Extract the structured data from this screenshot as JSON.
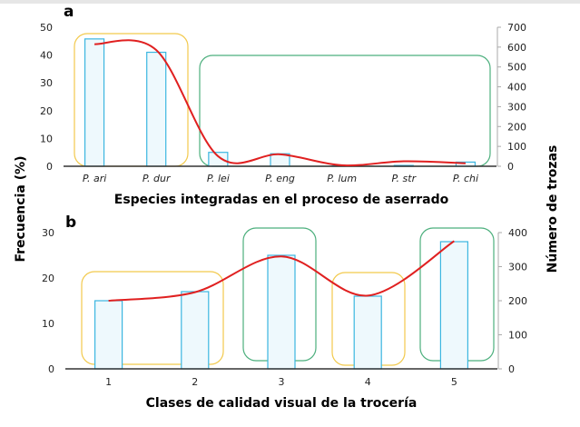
{
  "y_label_left": "Frecuencia (%)",
  "y_label_right": "Número de trozas",
  "colors": {
    "bar_stroke": "#3bb6e0",
    "bar_fill": "#eef9fd",
    "line": "#e02020",
    "box_yellow": "#f2c94c",
    "box_green": "#4caf7d",
    "axis": "#333333"
  },
  "chart_data": [
    {
      "panel": "a",
      "type": "bar",
      "xlabel": "Especies integradas en el proceso de aserrado",
      "categories": [
        "P. ari",
        "P. dur",
        "P. lei",
        "P. eng",
        "P. lum",
        "P. str",
        "P. chi"
      ],
      "ylim": [
        0,
        50
      ],
      "yticks": [
        0,
        10,
        20,
        30,
        40,
        50
      ],
      "y2lim": [
        0,
        700
      ],
      "y2ticks": [
        0,
        100,
        200,
        300,
        400,
        500,
        600,
        700
      ],
      "series": [
        {
          "type": "bar",
          "axis": "left",
          "values": [
            45.8,
            41,
            5,
            4.5,
            0.2,
            0.3,
            1.5
          ]
        },
        {
          "type": "line",
          "axis": "right",
          "smooth": true,
          "values": [
            615,
            585,
            50,
            60,
            5,
            25,
            15
          ]
        }
      ],
      "groups": [
        {
          "color": "yellow",
          "categories": [
            "P. ari",
            "P. dur"
          ]
        },
        {
          "color": "green",
          "categories": [
            "P. lei",
            "P. eng",
            "P. lum",
            "P. str",
            "P. chi"
          ]
        }
      ]
    },
    {
      "panel": "b",
      "type": "bar",
      "xlabel": "Clases de calidad visual de la trocería",
      "categories": [
        "1",
        "2",
        "3",
        "4",
        "5"
      ],
      "ylim": [
        0,
        30
      ],
      "yticks": [
        0,
        10,
        20,
        30
      ],
      "y2lim": [
        0,
        400
      ],
      "y2ticks": [
        0,
        100,
        200,
        300,
        400
      ],
      "series": [
        {
          "type": "bar",
          "axis": "left",
          "values": [
            15,
            17,
            25,
            16,
            28
          ]
        },
        {
          "type": "line",
          "axis": "right",
          "smooth": true,
          "values": [
            200,
            225,
            330,
            215,
            375
          ]
        }
      ],
      "groups": [
        {
          "color": "yellow",
          "categories": [
            "1",
            "2"
          ]
        },
        {
          "color": "green",
          "categories": [
            "3"
          ]
        },
        {
          "color": "yellow",
          "categories": [
            "4"
          ]
        },
        {
          "color": "green",
          "categories": [
            "5"
          ]
        }
      ]
    }
  ]
}
